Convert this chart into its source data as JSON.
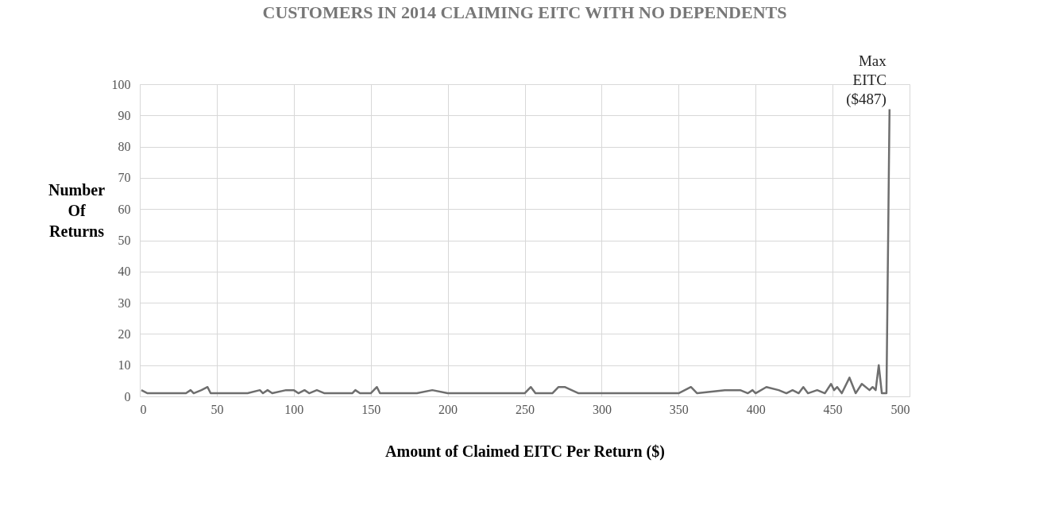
{
  "chart_data": {
    "type": "line",
    "title": "CUSTOMERS IN 2014 CLAIMING EITC WITH NO DEPENDENTS",
    "xlabel": "Amount of Claimed EITC Per Return ($)",
    "ylabel": "Number Of Returns",
    "x": [
      1,
      5,
      30,
      33,
      35,
      40,
      44,
      46,
      70,
      78,
      80,
      83,
      86,
      95,
      100,
      103,
      107,
      110,
      115,
      120,
      138,
      140,
      143,
      150,
      154,
      156,
      180,
      190,
      200,
      250,
      254,
      257,
      268,
      272,
      276,
      285,
      350,
      358,
      362,
      380,
      390,
      395,
      398,
      400,
      407,
      415,
      420,
      424,
      428,
      431,
      434,
      440,
      445,
      449,
      451,
      453,
      456,
      461,
      465,
      469,
      474,
      476,
      478,
      480,
      482,
      485,
      487
    ],
    "series": [
      {
        "color": "#6e6e6e",
        "values": [
          2,
          1,
          1,
          2,
          1,
          2,
          3,
          1,
          1,
          2,
          1,
          2,
          1,
          2,
          2,
          1,
          2,
          1,
          2,
          1,
          1,
          2,
          1,
          1,
          3,
          1,
          1,
          2,
          1,
          1,
          3,
          1,
          1,
          3,
          3,
          1,
          1,
          3,
          1,
          2,
          2,
          1,
          2,
          1,
          3,
          2,
          1,
          2,
          1,
          3,
          1,
          2,
          1,
          4,
          2,
          3,
          1,
          6,
          1,
          4,
          2,
          3,
          2,
          10,
          1,
          1,
          92
        ]
      }
    ],
    "xlim": [
      0,
      500
    ],
    "xticks": [
      0,
      50,
      100,
      150,
      200,
      250,
      300,
      350,
      400,
      450,
      500
    ],
    "ylim": [
      0,
      100
    ],
    "yticks": [
      0,
      10,
      20,
      30,
      40,
      50,
      60,
      70,
      80,
      90,
      100
    ],
    "grid": true,
    "line_style": "solid",
    "marker": "none",
    "annotations": [
      {
        "text": "Max EITC ($487)",
        "x": 487,
        "y": 92
      }
    ]
  }
}
